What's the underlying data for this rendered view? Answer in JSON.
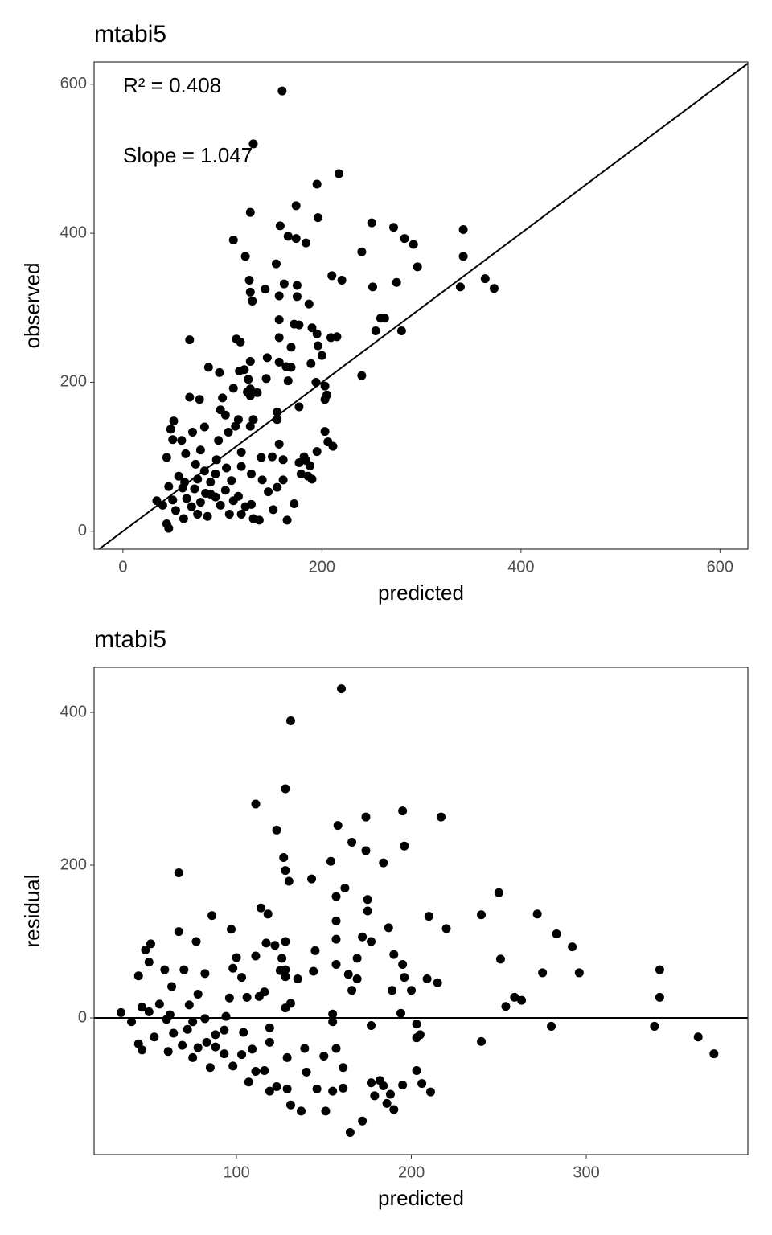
{
  "chart_data": [
    {
      "type": "scatter",
      "title": "mtabi5",
      "x_label": "predicted",
      "y_label": "observed",
      "annotations": [
        "R² = 0.408",
        "Slope = 1.047"
      ],
      "xlim": [
        -29,
        628
      ],
      "ylim": [
        -24,
        630
      ],
      "xticks": [
        0,
        200,
        400,
        600
      ],
      "yticks": [
        0,
        200,
        400,
        600
      ],
      "grid": false,
      "color": "#000000",
      "ref_line": {
        "intercept": 0,
        "slope": 1
      },
      "x": [
        160,
        131,
        217,
        195,
        174,
        128,
        250,
        158,
        196,
        272,
        342,
        111,
        166,
        174,
        184,
        283,
        292,
        123,
        240,
        342,
        154,
        127,
        296,
        210,
        220,
        162,
        275,
        364,
        339,
        251,
        373,
        143,
        128,
        175,
        130,
        157,
        187,
        175,
        259,
        263,
        157,
        172,
        177,
        67,
        114,
        118,
        190,
        195,
        254,
        280,
        157,
        209,
        215,
        169,
        196,
        200,
        128,
        145,
        157,
        164,
        169,
        189,
        240,
        86,
        97,
        117,
        122,
        126,
        144,
        166,
        194,
        203,
        205,
        203,
        67,
        77,
        100,
        111,
        125,
        128,
        135,
        128,
        177,
        155,
        155,
        131,
        98,
        103,
        116,
        113,
        128,
        51,
        48,
        70,
        82,
        106,
        203,
        206,
        211,
        195,
        182,
        157,
        150,
        50,
        59,
        44,
        63,
        78,
        96,
        119,
        139,
        161,
        177,
        184,
        188,
        190,
        186,
        179,
        119,
        94,
        82,
        73,
        56,
        60,
        46,
        34,
        40,
        44,
        46,
        53,
        64,
        72,
        78,
        88,
        93,
        103,
        109,
        116,
        123,
        131,
        137,
        151,
        165,
        172,
        146,
        155,
        161,
        140,
        129,
        107,
        85,
        75,
        61,
        69,
        83,
        98,
        111,
        119,
        129,
        62,
        50,
        93,
        104,
        75,
        88
      ],
      "values": [
        591,
        520,
        480,
        466,
        437,
        428,
        414,
        410,
        421,
        408,
        405,
        391,
        396,
        393,
        387,
        393,
        385,
        369,
        375,
        369,
        359,
        337,
        355,
        343,
        337,
        332,
        334,
        339,
        328,
        328,
        326,
        325,
        321,
        330,
        309,
        316,
        305,
        315,
        286,
        286,
        284,
        278,
        277,
        257,
        258,
        254,
        273,
        265,
        269,
        269,
        260,
        260,
        261,
        247,
        249,
        236,
        228,
        233,
        227,
        221,
        220,
        225,
        209,
        220,
        213,
        215,
        217,
        204,
        205,
        202,
        200,
        195,
        183,
        177,
        180,
        177,
        179,
        192,
        187,
        191,
        186,
        182,
        167,
        160,
        150,
        150,
        163,
        156,
        150,
        141,
        141,
        148,
        137,
        133,
        140,
        133,
        134,
        120,
        114,
        107,
        100,
        117,
        100,
        123,
        122,
        99,
        104,
        109,
        122,
        106,
        99,
        96,
        92,
        95,
        88,
        70,
        74,
        77,
        87,
        96,
        81,
        90,
        74,
        58,
        60,
        41,
        35,
        10,
        4,
        28,
        44,
        57,
        39,
        66,
        46,
        55,
        68,
        47,
        33,
        17,
        15,
        29,
        15,
        37,
        53,
        59,
        69,
        69,
        77,
        23,
        20,
        23,
        17,
        33,
        51,
        35,
        41,
        23,
        36,
        66,
        42,
        77,
        85,
        70,
        50
      ]
    },
    {
      "type": "scatter",
      "title": "mtabi5",
      "x_label": "predicted",
      "y_label": "residual",
      "xlim": [
        18.6,
        392.4
      ],
      "ylim": [
        -179,
        459
      ],
      "xticks": [
        100,
        200,
        300
      ],
      "yticks": [
        0,
        200,
        400
      ],
      "grid": false,
      "color": "#000000",
      "ref_line": {
        "intercept": 0,
        "slope": 0
      },
      "x": [
        160,
        131,
        217,
        195,
        174,
        128,
        250,
        158,
        196,
        272,
        342,
        111,
        166,
        174,
        184,
        283,
        292,
        123,
        240,
        342,
        154,
        127,
        296,
        210,
        220,
        162,
        275,
        364,
        339,
        251,
        373,
        143,
        128,
        175,
        130,
        157,
        187,
        175,
        259,
        263,
        157,
        172,
        177,
        67,
        114,
        118,
        190,
        195,
        254,
        280,
        157,
        209,
        215,
        169,
        196,
        200,
        128,
        145,
        157,
        164,
        169,
        189,
        240,
        86,
        97,
        117,
        122,
        126,
        144,
        166,
        194,
        203,
        205,
        203,
        67,
        77,
        100,
        111,
        125,
        128,
        135,
        128,
        177,
        155,
        155,
        131,
        98,
        103,
        116,
        113,
        128,
        51,
        48,
        70,
        82,
        106,
        203,
        206,
        211,
        195,
        182,
        157,
        150,
        50,
        59,
        44,
        63,
        78,
        96,
        119,
        139,
        161,
        177,
        184,
        188,
        190,
        186,
        179,
        119,
        94,
        82,
        73,
        56,
        60,
        46,
        34,
        40,
        44,
        46,
        53,
        64,
        72,
        78,
        88,
        93,
        103,
        109,
        116,
        123,
        131,
        137,
        151,
        165,
        172,
        146,
        155,
        161,
        140,
        129,
        107,
        85,
        75,
        61,
        69,
        83,
        98,
        111,
        119,
        129,
        62,
        50,
        93,
        104,
        75,
        88
      ],
      "values": [
        431,
        389,
        263,
        271,
        263,
        300,
        164,
        252,
        225,
        136,
        63,
        280,
        230,
        219,
        203,
        110,
        93,
        246,
        135,
        27,
        205,
        210,
        59,
        133,
        117,
        170,
        59,
        -25,
        -11,
        77,
        -47,
        182,
        193,
        155,
        179,
        159,
        118,
        140,
        27,
        23,
        127,
        106,
        100,
        190,
        144,
        136,
        83,
        70,
        15,
        -11,
        103,
        51,
        46,
        78,
        53,
        36,
        100,
        88,
        70,
        57,
        51,
        36,
        -31,
        134,
        116,
        98,
        95,
        78,
        61,
        36,
        6,
        -8,
        -22,
        -26,
        113,
        100,
        79,
        81,
        62,
        63,
        51,
        54,
        -10,
        5,
        -5,
        19,
        65,
        53,
        34,
        28,
        13,
        97,
        89,
        63,
        58,
        27,
        -69,
        -86,
        -97,
        -88,
        -82,
        -40,
        -50,
        73,
        63,
        55,
        41,
        31,
        26,
        -13,
        -40,
        -65,
        -85,
        -89,
        -100,
        -120,
        -112,
        -102,
        -32,
        2,
        -1,
        17,
        18,
        -2,
        14,
        7,
        -5,
        -34,
        -42,
        -25,
        -20,
        -15,
        -39,
        -22,
        -47,
        -48,
        -41,
        -69,
        -90,
        -114,
        -122,
        -122,
        -150,
        -135,
        -93,
        -96,
        -92,
        -71,
        -52,
        -84,
        -65,
        -52,
        -44,
        -36,
        -32,
        -63,
        -70,
        -96,
        -93,
        4,
        8,
        -16,
        -19,
        -5,
        -38
      ]
    }
  ]
}
